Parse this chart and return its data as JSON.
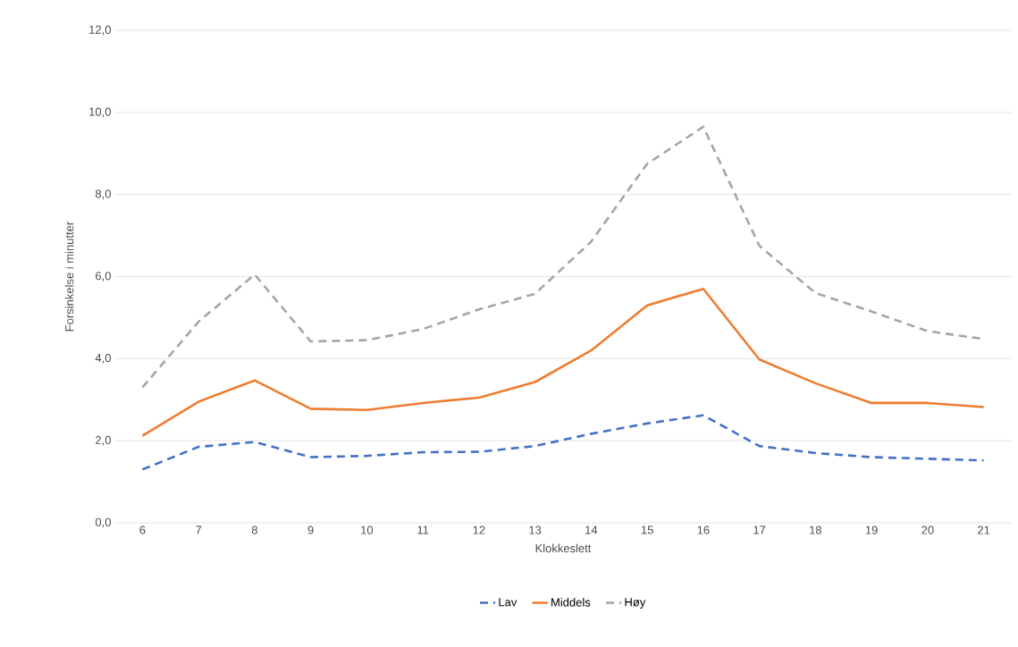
{
  "chart_data": {
    "type": "line",
    "xlabel": "Klokkeslett",
    "ylabel": "Forsinkelse i minutter",
    "categories": [
      "6",
      "7",
      "8",
      "9",
      "10",
      "11",
      "12",
      "13",
      "14",
      "15",
      "16",
      "17",
      "18",
      "19",
      "20",
      "21"
    ],
    "series": [
      {
        "name": "Lav",
        "color": "#4472c4",
        "line_style": "dashed",
        "values": [
          1.3,
          1.85,
          1.97,
          1.6,
          1.63,
          1.72,
          1.73,
          1.87,
          2.17,
          2.42,
          2.62,
          1.87,
          1.7,
          1.6,
          1.56,
          1.52
        ]
      },
      {
        "name": "Middels",
        "color": "#ed7d31",
        "line_style": "solid",
        "values": [
          2.12,
          2.95,
          3.47,
          2.78,
          2.75,
          2.92,
          3.05,
          3.43,
          4.2,
          5.3,
          5.7,
          3.98,
          3.4,
          2.92,
          2.92,
          2.82
        ]
      },
      {
        "name": "Høy",
        "color": "#a5a5a5",
        "line_style": "dashed",
        "values": [
          3.3,
          4.9,
          6.05,
          4.42,
          4.45,
          4.72,
          5.2,
          5.58,
          6.85,
          8.75,
          9.65,
          6.75,
          5.6,
          5.15,
          4.67,
          4.48
        ]
      }
    ],
    "ylim": [
      0,
      12
    ],
    "yticks": [
      {
        "value": 0,
        "label": "0,0"
      },
      {
        "value": 2,
        "label": "2,0"
      },
      {
        "value": 4,
        "label": "4,0"
      },
      {
        "value": 6,
        "label": "6,0"
      },
      {
        "value": 8,
        "label": "8,0"
      },
      {
        "value": 10,
        "label": "10,0"
      },
      {
        "value": 12,
        "label": "12,0"
      }
    ],
    "grid": "y",
    "legend": "bottom",
    "marker": "none"
  }
}
